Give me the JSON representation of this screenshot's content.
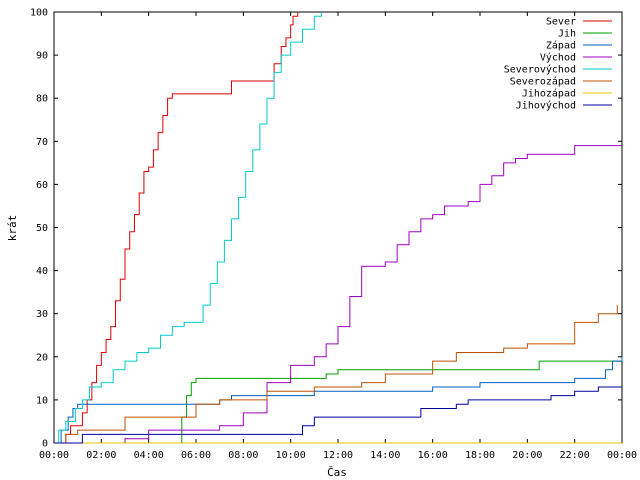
{
  "chart_data": {
    "type": "line",
    "xlabel": "Čas",
    "ylabel": "krát",
    "xlim": [
      0,
      24
    ],
    "ylim": [
      0,
      100
    ],
    "x_ticks": [
      "00:00",
      "02:00",
      "04:00",
      "06:00",
      "08:00",
      "10:00",
      "12:00",
      "14:00",
      "16:00",
      "18:00",
      "20:00",
      "22:00",
      "00:00"
    ],
    "y_ticks": [
      0,
      10,
      20,
      30,
      40,
      50,
      60,
      70,
      80,
      90,
      100
    ],
    "grid": false,
    "legend_position": "top-right",
    "series": [
      {
        "name": "Sever",
        "color": "#dd0000",
        "x": [
          0.4,
          0.5,
          0.7,
          1.0,
          1.2,
          1.4,
          1.6,
          1.8,
          2.0,
          2.2,
          2.4,
          2.6,
          2.8,
          3.0,
          3.2,
          3.4,
          3.6,
          3.8,
          4.0,
          4.2,
          4.4,
          4.6,
          4.8,
          5.0,
          5.2,
          5.5,
          6.0,
          6.5,
          7.0,
          7.5,
          8.0,
          8.5,
          9.0,
          9.3,
          9.6,
          9.8,
          10.0,
          10.1,
          10.3
        ],
        "y": [
          0,
          2,
          4,
          4,
          7,
          10,
          14,
          18,
          21,
          24,
          27,
          33,
          38,
          45,
          49,
          53,
          58,
          63,
          64,
          68,
          72,
          76,
          80,
          81,
          81,
          81,
          81,
          81,
          81,
          84,
          84,
          84,
          84,
          88,
          92,
          94,
          97,
          99,
          100
        ]
      },
      {
        "name": "Jih",
        "color": "#00a000",
        "x": [
          0,
          5.2,
          5.4,
          5.6,
          5.8,
          6.0,
          7.0,
          8.0,
          9.0,
          10.0,
          11.0,
          11.5,
          12.0,
          13.0,
          14.0,
          15.0,
          16.0,
          17.0,
          18.0,
          19.0,
          20.0,
          20.5,
          21.0,
          22.0,
          23.0,
          24.0
        ],
        "y": [
          0,
          0,
          6,
          11,
          14,
          15,
          15,
          15,
          15,
          15,
          15,
          16,
          17,
          17,
          17,
          17,
          17,
          17,
          17,
          17,
          17,
          19,
          19,
          19,
          19,
          19
        ]
      },
      {
        "name": "Západ",
        "color": "#0060c0",
        "x": [
          0,
          0.3,
          0.6,
          0.8,
          1.0,
          2.0,
          3.0,
          4.0,
          5.0,
          6.0,
          7.0,
          7.5,
          8.0,
          9.0,
          10.0,
          11.0,
          12.0,
          13.0,
          14.0,
          15.0,
          16.0,
          17.0,
          18.0,
          19.0,
          20.0,
          21.0,
          22.0,
          23.0,
          23.3,
          23.6,
          24.0
        ],
        "y": [
          0,
          3,
          6,
          8,
          9,
          9,
          9,
          9,
          9,
          9,
          10,
          11,
          11,
          11,
          11,
          12,
          12,
          12,
          12,
          12,
          13,
          13,
          14,
          14,
          14,
          14,
          15,
          15,
          17,
          19,
          20
        ]
      },
      {
        "name": "Východ",
        "color": "#a000c0",
        "x": [
          0,
          3.0,
          4.0,
          5.0,
          6.0,
          7.0,
          8.0,
          9.0,
          10.0,
          11.0,
          11.5,
          12.0,
          12.5,
          13.0,
          13.5,
          14.0,
          14.5,
          15.0,
          15.5,
          16.0,
          16.5,
          17.0,
          17.5,
          18.0,
          18.5,
          19.0,
          19.5,
          20.0,
          21.0,
          22.0,
          23.0,
          24.0
        ],
        "y": [
          0,
          1,
          3,
          3,
          3,
          4,
          7,
          14,
          18,
          20,
          23,
          27,
          34,
          41,
          41,
          42,
          46,
          49,
          52,
          53,
          55,
          55,
          56,
          60,
          62,
          65,
          66,
          67,
          67,
          69,
          69,
          69
        ]
      },
      {
        "name": "Severovýchod",
        "color": "#00cccc",
        "x": [
          0,
          0.2,
          0.5,
          0.9,
          1.2,
          1.5,
          2.0,
          2.5,
          3.0,
          3.5,
          4.0,
          4.5,
          5.0,
          5.5,
          6.0,
          6.3,
          6.6,
          6.9,
          7.2,
          7.5,
          7.8,
          8.1,
          8.4,
          8.7,
          9.0,
          9.3,
          9.6,
          10.0,
          10.5,
          11.0,
          11.3
        ],
        "y": [
          0,
          3,
          5,
          8,
          10,
          13,
          14,
          17,
          19,
          21,
          22,
          25,
          27,
          28,
          28,
          32,
          37,
          42,
          47,
          52,
          57,
          63,
          68,
          74,
          80,
          86,
          90,
          93,
          96,
          99,
          100
        ]
      },
      {
        "name": "Severozápad",
        "color": "#c05000",
        "x": [
          0,
          0.5,
          1.0,
          2.0,
          3.0,
          4.0,
          5.0,
          5.5,
          6.0,
          7.0,
          8.0,
          9.0,
          10.0,
          11.0,
          12.0,
          13.0,
          14.0,
          15.0,
          16.0,
          17.0,
          18.0,
          19.0,
          20.0,
          21.0,
          21.5,
          22.0,
          23.0,
          23.8
        ],
        "y": [
          0,
          2,
          3,
          3,
          6,
          6,
          6,
          6,
          9,
          10,
          10,
          12,
          12,
          13,
          13,
          14,
          16,
          16,
          19,
          21,
          21,
          22,
          23,
          23,
          23,
          28,
          30,
          32
        ]
      },
      {
        "name": "Jihozápad",
        "color": "#e0c000",
        "x": [
          0,
          24.0
        ],
        "y": [
          0,
          0
        ]
      },
      {
        "name": "Jihovýchod",
        "color": "#0000a0",
        "x": [
          0,
          1.2,
          2.0,
          4.0,
          6.0,
          8.0,
          10.0,
          10.5,
          11.0,
          12.0,
          13.0,
          14.0,
          15.0,
          15.5,
          16.0,
          17.0,
          17.5,
          18.0,
          19.0,
          20.0,
          21.0,
          22.0,
          23.0,
          24.0
        ],
        "y": [
          0,
          2,
          2,
          2,
          2,
          2,
          2,
          4,
          6,
          6,
          6,
          6,
          6,
          8,
          8,
          9,
          10,
          10,
          10,
          10,
          11,
          12,
          13,
          13
        ]
      }
    ]
  }
}
